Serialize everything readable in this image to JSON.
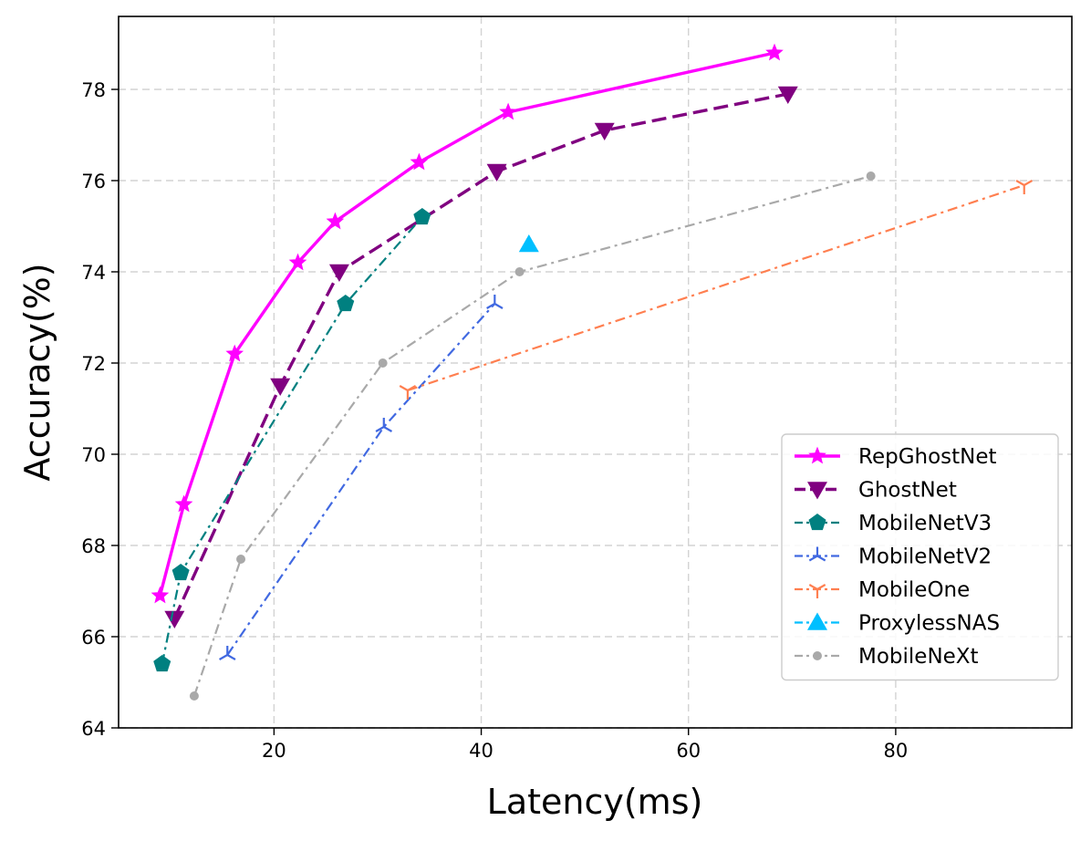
{
  "chart_data": {
    "type": "line",
    "title": "",
    "xlabel": "Latency(ms)",
    "ylabel": "Accuracy(%)",
    "xlim": [
      5,
      97
    ],
    "ylim": [
      64,
      79.6
    ],
    "xticks": [
      20,
      40,
      60,
      80
    ],
    "yticks": [
      64,
      66,
      68,
      70,
      72,
      74,
      76,
      78
    ],
    "grid": true,
    "legend_position": "bottom-right",
    "series": [
      {
        "name": "RepGhostNet",
        "color": "#ff00ff",
        "line_style": "solid",
        "marker": "star",
        "x": [
          9.0,
          11.3,
          16.2,
          22.3,
          25.9,
          34.0,
          42.6,
          68.3
        ],
        "y": [
          66.9,
          68.9,
          72.2,
          74.2,
          75.1,
          76.4,
          77.5,
          78.8
        ]
      },
      {
        "name": "GhostNet",
        "color": "#800080",
        "line_style": "dashed",
        "marker": "triangle-down",
        "x": [
          10.4,
          20.6,
          26.3,
          41.5,
          51.9,
          69.6
        ],
        "y": [
          66.4,
          71.5,
          74.0,
          76.2,
          77.1,
          77.9
        ]
      },
      {
        "name": "MobileNetV3",
        "color": "#008080",
        "line_style": "dash-dot",
        "marker": "pentagon",
        "x": [
          9.2,
          11.0,
          26.9,
          34.3
        ],
        "y": [
          65.4,
          67.4,
          73.3,
          75.2
        ]
      },
      {
        "name": "MobileNetV2",
        "color": "#4169e1",
        "line_style": "dash-dot",
        "marker": "tri",
        "x": [
          15.5,
          30.6,
          41.3
        ],
        "y": [
          65.6,
          70.6,
          73.3
        ]
      },
      {
        "name": "MobileOne",
        "color": "#ff7f50",
        "line_style": "dash-dot",
        "marker": "tri-down",
        "x": [
          32.9,
          92.4
        ],
        "y": [
          71.4,
          75.9
        ]
      },
      {
        "name": "ProxylessNAS",
        "color": "#00bfff",
        "line_style": "dash-dot",
        "marker": "triangle-up",
        "x": [
          44.6
        ],
        "y": [
          74.6
        ]
      },
      {
        "name": "MobileNeXt",
        "color": "#a9a9a9",
        "line_style": "dash-dot",
        "marker": "circle",
        "x": [
          12.3,
          16.8,
          30.5,
          43.7,
          77.6
        ],
        "y": [
          64.7,
          67.7,
          72.0,
          74.0,
          76.1
        ]
      }
    ]
  }
}
